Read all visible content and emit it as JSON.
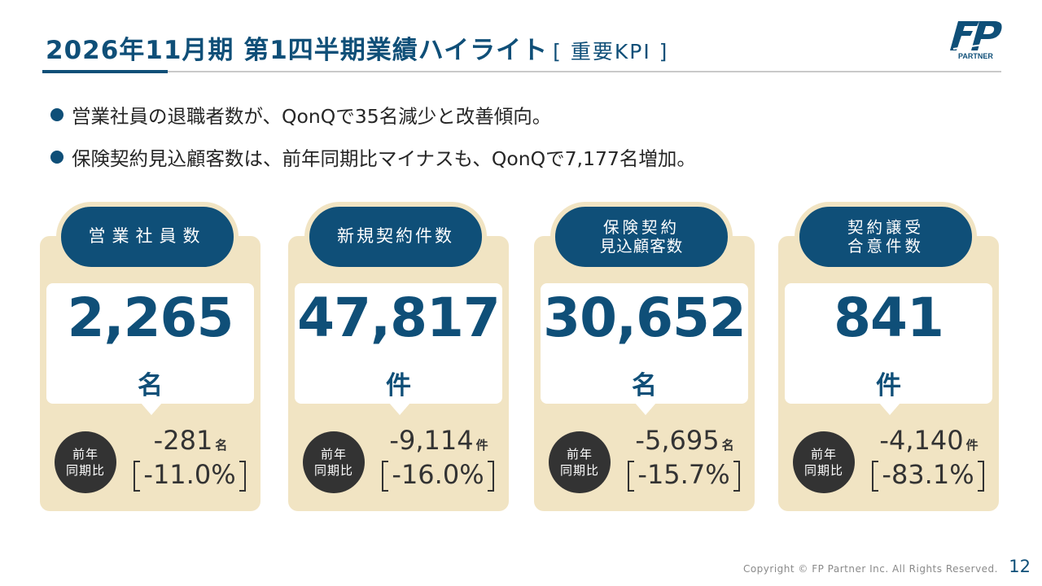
{
  "header": {
    "title": "2026年11月期 第1四半期業績ハイライト",
    "subtitle": "[ 重要KPI ]"
  },
  "logo": {
    "text": "PARTNER"
  },
  "bullets": [
    "営業社員の退職者数が、QonQで35名減少と改善傾向。",
    "保険契約見込顧客数は、前年同期比マイナスも、QonQで7,177名増加。"
  ],
  "cards": [
    {
      "label_lines": [
        "営業社員数"
      ],
      "value": "2,265",
      "unit": "名",
      "yoy_label": [
        "前年",
        "同期比"
      ],
      "diff": "-281",
      "diff_unit": "名",
      "pct": "-11.0%"
    },
    {
      "label_lines": [
        "新規契約件数"
      ],
      "value": "47,817",
      "unit": "件",
      "yoy_label": [
        "前年",
        "同期比"
      ],
      "diff": "-9,114",
      "diff_unit": "件",
      "pct": "-16.0%"
    },
    {
      "label_lines": [
        "保険契約",
        "見込顧客数"
      ],
      "value": "30,652",
      "unit": "名",
      "yoy_label": [
        "前年",
        "同期比"
      ],
      "diff": "-5,695",
      "diff_unit": "名",
      "pct": "-15.7%"
    },
    {
      "label_lines": [
        "契約譲受",
        "合意件数"
      ],
      "value": "841",
      "unit": "件",
      "yoy_label": [
        "前年",
        "同期比"
      ],
      "diff": "-4,140",
      "diff_unit": "件",
      "pct": "-83.1%"
    }
  ],
  "footer": {
    "copyright": "Copyright © FP Partner Inc. All Rights Reserved.",
    "page": "12"
  }
}
